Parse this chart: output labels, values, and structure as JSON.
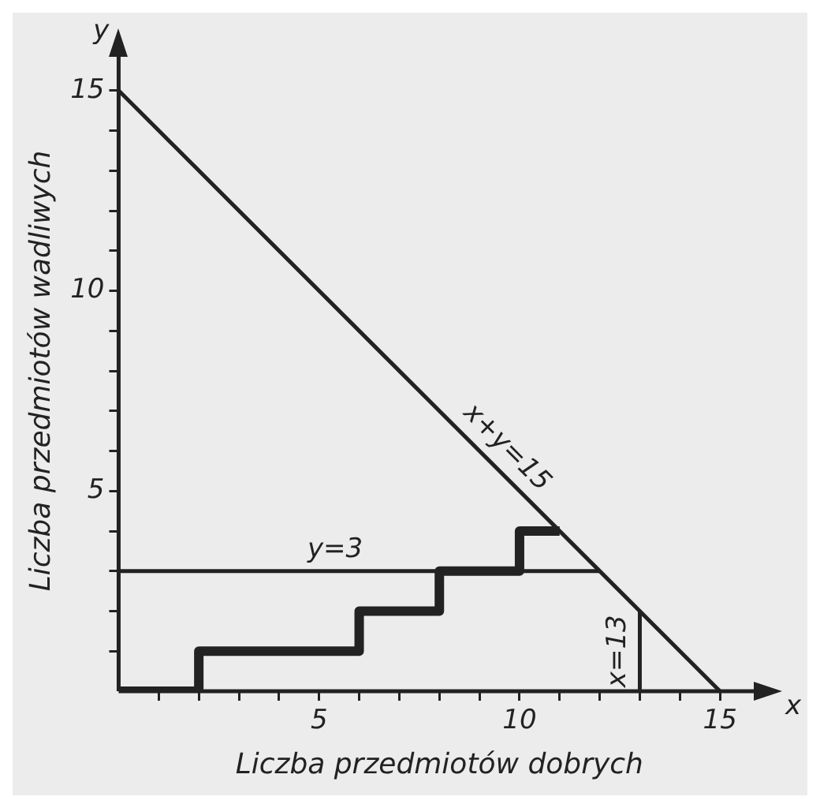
{
  "chart_data": {
    "type": "line",
    "xlabel": "Liczba przedmiotów dobrych",
    "ylabel": "Liczba przedmiotów wadliwych",
    "xlim": [
      0,
      16
    ],
    "ylim": [
      0,
      16
    ],
    "xticks": [
      {
        "value": 1,
        "label": null
      },
      {
        "value": 2,
        "label": null
      },
      {
        "value": 3,
        "label": null
      },
      {
        "value": 4,
        "label": null
      },
      5,
      {
        "value": 6,
        "label": null
      },
      {
        "value": 7,
        "label": null
      },
      {
        "value": 8,
        "label": null
      },
      {
        "value": 9,
        "label": null
      },
      10,
      {
        "value": 11,
        "label": null
      },
      {
        "value": 12,
        "label": null
      },
      {
        "value": 13,
        "label": null
      },
      {
        "value": 14,
        "label": null
      },
      15
    ],
    "yticks": [
      {
        "value": 1,
        "label": null
      },
      {
        "value": 2,
        "label": null
      },
      {
        "value": 3,
        "label": null
      },
      {
        "value": 4,
        "label": null
      },
      5,
      {
        "value": 6,
        "label": null
      },
      {
        "value": 7,
        "label": null
      },
      {
        "value": 8,
        "label": null
      },
      {
        "value": 9,
        "label": null
      },
      10,
      {
        "value": 11,
        "label": null
      },
      {
        "value": 12,
        "label": null
      },
      {
        "value": 13,
        "label": null
      },
      {
        "value": 14,
        "label": null
      },
      15
    ],
    "series": [
      {
        "name": "x+y=15",
        "color": "#222222",
        "x": [
          0,
          15
        ],
        "values": [
          15,
          0
        ]
      },
      {
        "name": "y=3",
        "color": "#222222",
        "x": [
          0,
          12
        ],
        "values": [
          3,
          3
        ]
      },
      {
        "name": "x=13",
        "color": "#222222",
        "x": [
          13,
          13
        ],
        "values": [
          0,
          2
        ]
      },
      {
        "type": "step",
        "color": "#222222",
        "x": [
          0,
          2,
          6,
          8,
          10,
          11
        ],
        "values": [
          0,
          1,
          2,
          3,
          4,
          4
        ]
      }
    ],
    "annotations": [
      "x",
      "y"
    ],
    "grid": false,
    "legend": false,
    "marker": "none"
  }
}
